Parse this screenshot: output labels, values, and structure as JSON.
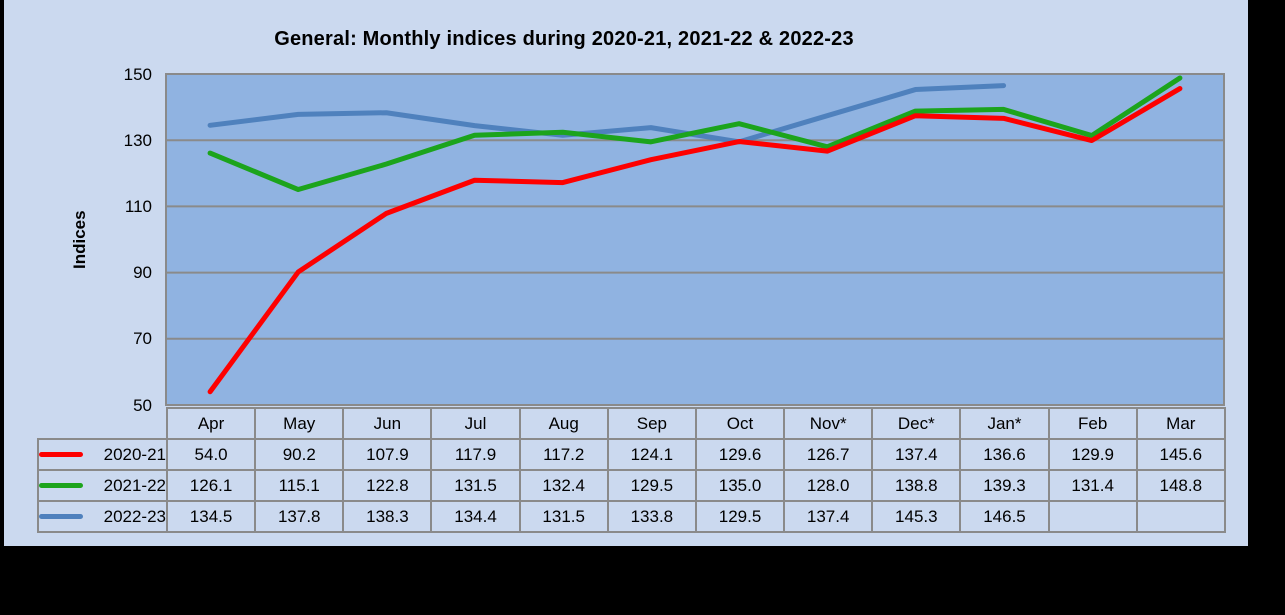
{
  "chart_data": {
    "type": "line",
    "title": "General: Monthly indices during 2020-21, 2021-22 & 2022-23",
    "xlabel": "",
    "ylabel": "Indices",
    "ylim": [
      50,
      150
    ],
    "yticks": [
      50,
      70,
      90,
      110,
      130,
      150
    ],
    "grid": "horizontal",
    "legend_position": "table-left",
    "categories": [
      "Apr",
      "May",
      "Jun",
      "Jul",
      "Aug",
      "Sep",
      "Oct",
      "Nov*",
      "Dec*",
      "Jan*",
      "Feb",
      "Mar"
    ],
    "series": [
      {
        "name": "2020-21",
        "color": "#fe0000",
        "values": [
          54.0,
          90.2,
          107.9,
          117.9,
          117.2,
          124.1,
          129.6,
          126.7,
          137.4,
          136.6,
          129.9,
          145.6
        ]
      },
      {
        "name": "2021-22",
        "color": "#1ca41c",
        "values": [
          126.1,
          115.1,
          122.8,
          131.5,
          132.4,
          129.5,
          135.0,
          128.0,
          138.8,
          139.3,
          131.4,
          148.8
        ]
      },
      {
        "name": "2022-23",
        "color": "#4f81bd",
        "values": [
          134.5,
          137.8,
          138.3,
          134.4,
          131.5,
          133.8,
          129.5,
          137.4,
          145.3,
          146.5,
          null,
          null
        ]
      }
    ]
  },
  "colors": {
    "page_background": "#000000",
    "panel_background": "#cbd9ef",
    "plot_background": "#90b3e1",
    "grid_line": "#8a8a8a",
    "table_border": "#8a8a8a",
    "text": "#000000"
  }
}
